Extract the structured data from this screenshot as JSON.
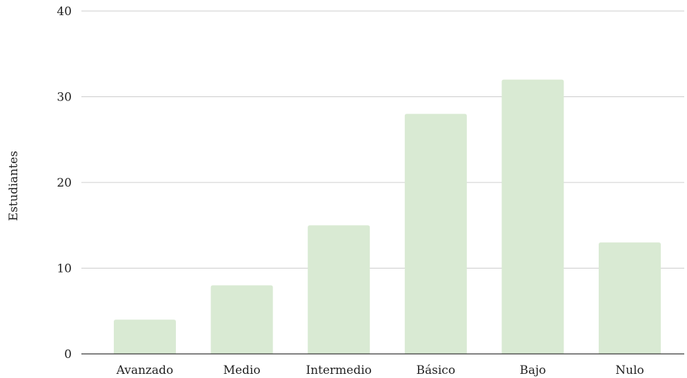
{
  "chart_data": {
    "type": "bar",
    "title": "",
    "xlabel": "",
    "ylabel": "Estudiantes",
    "categories": [
      "Avanzado",
      "Medio",
      "Intermedio",
      "Básico",
      "Bajo",
      "Nulo"
    ],
    "values": [
      4,
      8,
      15,
      28,
      32,
      13
    ],
    "ylim": [
      0,
      40
    ],
    "yticks": [
      0,
      10,
      20,
      30,
      40
    ],
    "ytick_labels": [
      "0",
      "10",
      "20",
      "30",
      "40"
    ],
    "grid": true,
    "legend": "none",
    "bar_color": "#d9ead3",
    "grid_color": "#cccccc",
    "axis_color": "#333333"
  }
}
